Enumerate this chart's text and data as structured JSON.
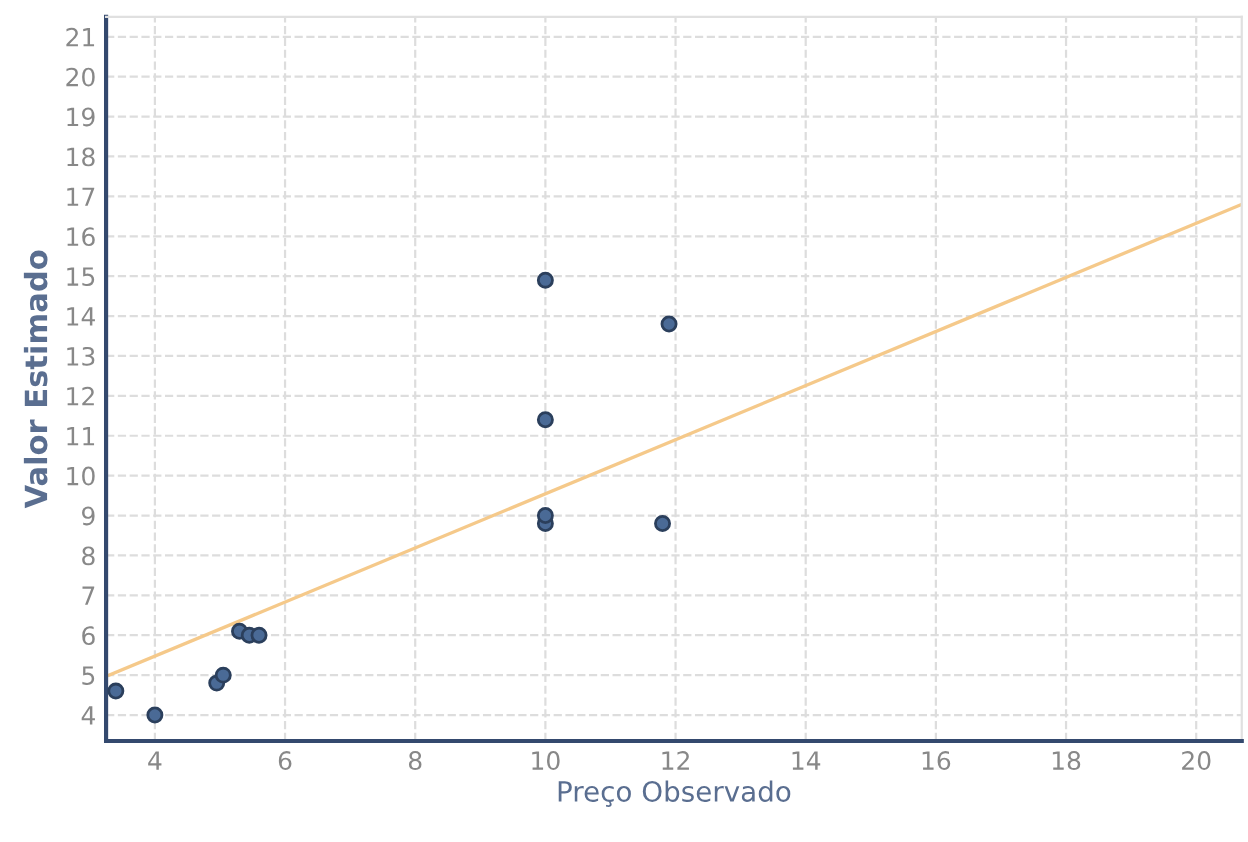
{
  "chart_data": {
    "type": "scatter",
    "xlabel": "Preço Observado",
    "ylabel": "Valor Estimado",
    "xlim": [
      3.25,
      20.7
    ],
    "ylim": [
      3.35,
      21.5
    ],
    "xticks": [
      4,
      6,
      8,
      10,
      12,
      14,
      16,
      18,
      20
    ],
    "yticks": [
      4,
      5,
      6,
      7,
      8,
      9,
      10,
      11,
      12,
      13,
      14,
      15,
      16,
      17,
      18,
      19,
      20,
      21
    ],
    "grid": true,
    "series": [
      {
        "marker": "circle",
        "color": "#4a6a96",
        "x": [
          3.4,
          4.0,
          4.95,
          5.05,
          5.3,
          5.45,
          5.6,
          10,
          10,
          10,
          10,
          11.8,
          11.9
        ],
        "values": [
          4.6,
          4.0,
          4.8,
          5.0,
          6.1,
          6.0,
          6.0,
          8.8,
          9.0,
          11.4,
          14.9,
          8.8,
          13.8
        ]
      },
      {
        "type": "line",
        "color": "#f5c98a",
        "x": [
          3.3,
          20.7
        ],
        "values": [
          5.0,
          16.8
        ],
        "line_style": "solid",
        "marker": "none"
      }
    ]
  }
}
